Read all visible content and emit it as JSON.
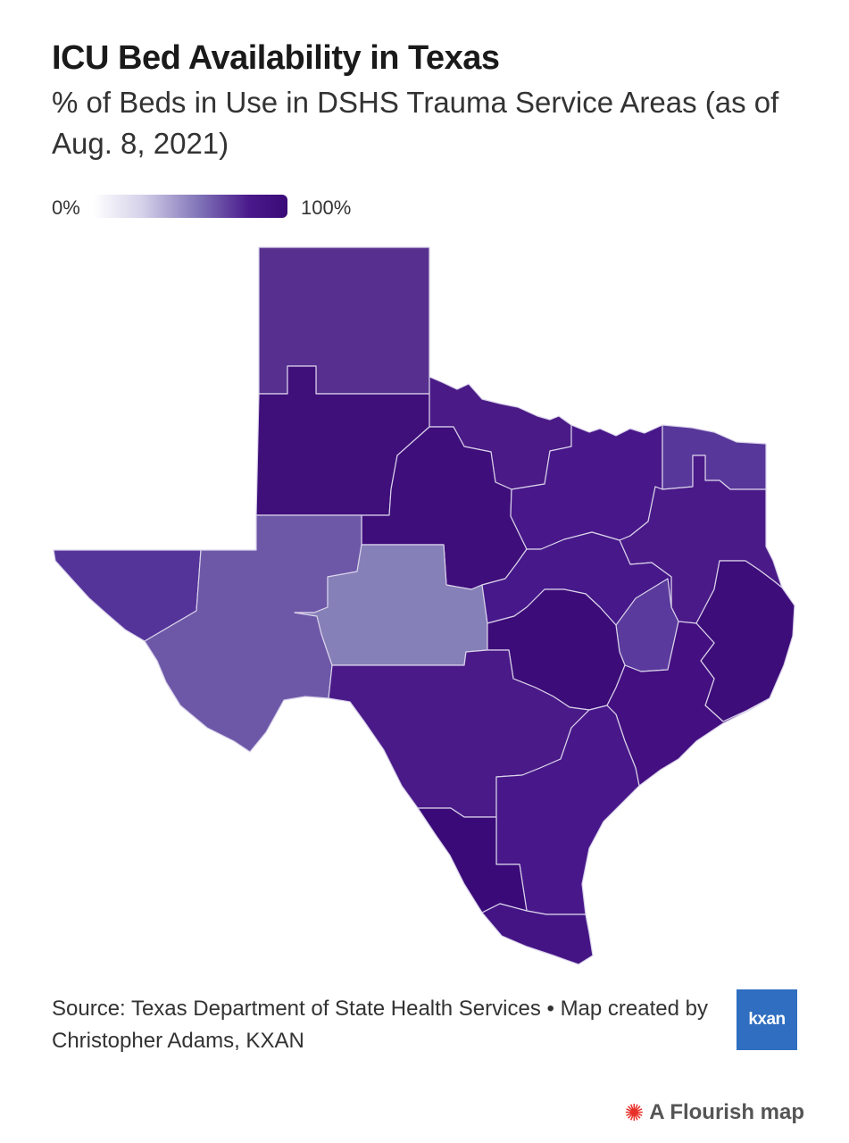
{
  "header": {
    "title": "ICU Bed Availability in Texas",
    "subtitle": "% of Beds in Use in DSHS Trauma Service Areas (as of Aug. 8, 2021)"
  },
  "legend": {
    "min_label": "0%",
    "max_label": "100%",
    "color_low": "#ffffff",
    "color_high": "#3a0a78"
  },
  "map": {
    "regions": [
      {
        "id": "panhandle-north",
        "fill": "#57308f"
      },
      {
        "id": "panhandle-south",
        "fill": "#3f0f7a"
      },
      {
        "id": "north-texas-west",
        "fill": "#4a1a86"
      },
      {
        "id": "north-central",
        "fill": "#3e0e7a"
      },
      {
        "id": "dfw",
        "fill": "#48188a"
      },
      {
        "id": "northeast",
        "fill": "#57379a"
      },
      {
        "id": "east-texas",
        "fill": "#4a1a88"
      },
      {
        "id": "far-west",
        "fill": "#55349a"
      },
      {
        "id": "permian-basin",
        "fill": "#6d58a8"
      },
      {
        "id": "concho-valley",
        "fill": "#8680b8"
      },
      {
        "id": "central-texas",
        "fill": "#46188a"
      },
      {
        "id": "brazos-valley",
        "fill": "#5a3a9c"
      },
      {
        "id": "southeast",
        "fill": "#3d0d7a"
      },
      {
        "id": "capital-area",
        "fill": "#3c0c78"
      },
      {
        "id": "houston-gulf",
        "fill": "#440f80"
      },
      {
        "id": "south-central",
        "fill": "#4a1a88"
      },
      {
        "id": "coastal-bend",
        "fill": "#48188a"
      },
      {
        "id": "laredo",
        "fill": "#3a0a78"
      },
      {
        "id": "rio-grande-valley",
        "fill": "#441484"
      }
    ]
  },
  "footer": {
    "source": "Source: Texas Department of State Health Services • Map created by Christopher Adams, KXAN",
    "logo_text": "kxan",
    "attribution": "A Flourish map",
    "attribution_icon": "flourish-burst-icon"
  }
}
